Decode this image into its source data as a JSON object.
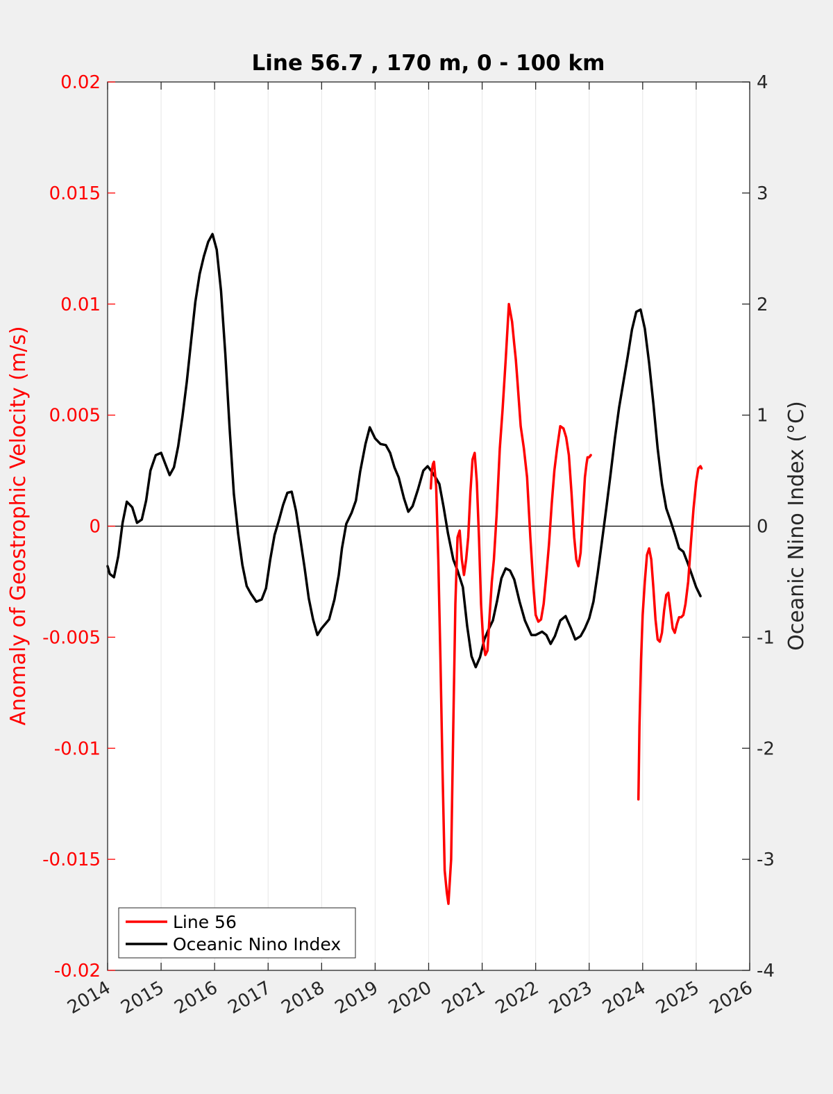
{
  "chart_data": {
    "type": "line",
    "title": "Line 56.7 , 170 m, 0 - 100 km",
    "xlabel": "",
    "ylabel_left": "Anomaly of Geostrophic Velocity (m/s)",
    "ylabel_right": "Oceanic Nino Index (°C)",
    "xlim": [
      2014,
      2026
    ],
    "ylim_left": [
      -0.02,
      0.02
    ],
    "ylim_right": [
      -4,
      4
    ],
    "x_ticks": [
      "2014",
      "2015",
      "2016",
      "2017",
      "2018",
      "2019",
      "2020",
      "2021",
      "2022",
      "2023",
      "2024",
      "2025",
      "2026"
    ],
    "y_left_ticks": [
      "-0.02",
      "-0.015",
      "-0.01",
      "-0.005",
      "0",
      "0.005",
      "0.01",
      "0.015",
      "0.02"
    ],
    "y_right_ticks": [
      "-4",
      "-3",
      "-2",
      "-1",
      "0",
      "1",
      "2",
      "3",
      "4"
    ],
    "grid": "vertical",
    "zero_line": true,
    "legend_position": "bottom-left",
    "colors": {
      "line56": "#ff0000",
      "oni": "#000000",
      "left_axis": "#ff0000",
      "right_axis": "#262626"
    },
    "series": [
      {
        "name": "Line 56",
        "axis": "left",
        "segments": [
          {
            "x": [
              2020.04,
              2020.06,
              2020.08,
              2020.1,
              2020.14,
              2020.18,
              2020.22,
              2020.26,
              2020.3,
              2020.34,
              2020.37,
              2020.42,
              2020.46,
              2020.5,
              2020.54,
              2020.58,
              2020.62,
              2020.66,
              2020.7,
              2020.74,
              2020.78,
              2020.82,
              2020.86,
              2020.9,
              2020.94,
              2020.98,
              2021.02,
              2021.06,
              2021.1,
              2021.14,
              2021.18,
              2021.22,
              2021.27,
              2021.33,
              2021.38,
              2021.44,
              2021.5,
              2021.56,
              2021.6,
              2021.63,
              2021.66,
              2021.72,
              2021.78,
              2021.84,
              2021.9,
              2021.96,
              2022.0,
              2022.05,
              2022.1,
              2022.15,
              2022.2,
              2022.25,
              2022.3,
              2022.35,
              2022.4,
              2022.46,
              2022.52,
              2022.57,
              2022.62,
              2022.67,
              2022.72,
              2022.76,
              2022.8,
              2022.84,
              2022.88,
              2022.92,
              2022.95,
              2022.97,
              2023.0,
              2023.03
            ],
            "y": [
              0.0017,
              0.0025,
              0.0028,
              0.0029,
              0.0018,
              -0.0015,
              -0.006,
              -0.011,
              -0.0155,
              -0.0165,
              -0.017,
              -0.015,
              -0.009,
              -0.0035,
              -0.0005,
              -0.0002,
              -0.0015,
              -0.0022,
              -0.0015,
              -0.0005,
              0.0015,
              0.003,
              0.0033,
              0.002,
              -0.0005,
              -0.0035,
              -0.0052,
              -0.0058,
              -0.0056,
              -0.004,
              -0.0025,
              -0.0015,
              0.0005,
              0.0035,
              0.0052,
              0.0075,
              0.01,
              0.0092,
              0.0082,
              0.0075,
              0.0065,
              0.0045,
              0.0035,
              0.0022,
              -0.0005,
              -0.0028,
              -0.004,
              -0.0043,
              -0.0042,
              -0.0035,
              -0.0022,
              -0.0008,
              0.001,
              0.0025,
              0.0035,
              0.0045,
              0.0044,
              0.004,
              0.0032,
              0.0015,
              -0.0005,
              -0.0015,
              -0.0018,
              -0.0012,
              0.0005,
              0.0022,
              0.0028,
              0.0031,
              0.0031,
              0.0032
            ]
          },
          {
            "x": [
              2023.92,
              2023.94,
              2023.97,
              2024.0,
              2024.04,
              2024.08,
              2024.12,
              2024.16,
              2024.2,
              2024.24,
              2024.28,
              2024.32,
              2024.36,
              2024.4,
              2024.44,
              2024.48,
              2024.52,
              2024.56,
              2024.6,
              2024.64,
              2024.68,
              2024.72,
              2024.76,
              2024.8,
              2024.85,
              2024.9,
              2024.95,
              2025.0,
              2025.04,
              2025.08,
              2025.1
            ],
            "y": [
              -0.0123,
              -0.009,
              -0.006,
              -0.004,
              -0.0025,
              -0.0013,
              -0.001,
              -0.0015,
              -0.0028,
              -0.0042,
              -0.0051,
              -0.0052,
              -0.0048,
              -0.0038,
              -0.0031,
              -0.003,
              -0.0038,
              -0.0046,
              -0.0048,
              -0.0044,
              -0.0041,
              -0.0041,
              -0.004,
              -0.0035,
              -0.0025,
              -0.0008,
              0.0008,
              0.002,
              0.0026,
              0.0027,
              0.0026
            ]
          }
        ]
      },
      {
        "name": "Oceanic Nino Index",
        "axis": "right",
        "segments": [
          {
            "x": [
              2014.0,
              2014.04,
              2014.12,
              2014.2,
              2014.28,
              2014.36,
              2014.46,
              2014.55,
              2014.64,
              2014.72,
              2014.8,
              2014.9,
              2015.0,
              2015.08,
              2015.16,
              2015.24,
              2015.32,
              2015.4,
              2015.48,
              2015.56,
              2015.64,
              2015.72,
              2015.8,
              2015.88,
              2015.96,
              2016.04,
              2016.12,
              2016.2,
              2016.28,
              2016.36,
              2016.44,
              2016.52,
              2016.6,
              2016.68,
              2016.78,
              2016.88,
              2016.96,
              2017.04,
              2017.12,
              2017.2,
              2017.28,
              2017.36,
              2017.44,
              2017.52,
              2017.6,
              2017.68,
              2017.76,
              2017.84,
              2017.92,
              2018.0,
              2018.14,
              2018.24,
              2018.32,
              2018.38,
              2018.46,
              2018.56,
              2018.64,
              2018.72,
              2018.82,
              2018.9,
              2019.0,
              2019.1,
              2019.2,
              2019.28,
              2019.36,
              2019.44,
              2019.54,
              2019.62,
              2019.7,
              2019.8,
              2019.9,
              2019.98,
              2020.06,
              2020.14,
              2020.2,
              2020.28,
              2020.36,
              2020.46,
              2020.54,
              2020.64,
              2020.72,
              2020.8,
              2020.88,
              2020.96,
              2021.04,
              2021.12,
              2021.2,
              2021.28,
              2021.36,
              2021.44,
              2021.52,
              2021.6,
              2021.7,
              2021.8,
              2021.92,
              2022.0,
              2022.12,
              2022.2,
              2022.28,
              2022.36,
              2022.46,
              2022.56,
              2022.66,
              2022.74,
              2022.84,
              2022.92,
              2023.0,
              2023.08,
              2023.16,
              2023.24,
              2023.32,
              2023.4,
              2023.48,
              2023.56,
              2023.64,
              2023.72,
              2023.8,
              2023.88,
              2023.96,
              2024.04,
              2024.12,
              2024.2,
              2024.28,
              2024.36,
              2024.44,
              2024.52,
              2024.6,
              2024.68,
              2024.76,
              2024.84,
              2024.92,
              2025.0,
              2025.08
            ],
            "y": [
              -0.36,
              -0.43,
              -0.46,
              -0.27,
              0.03,
              0.22,
              0.17,
              0.03,
              0.06,
              0.23,
              0.5,
              0.64,
              0.66,
              0.56,
              0.46,
              0.53,
              0.72,
              0.99,
              1.3,
              1.66,
              2.02,
              2.27,
              2.43,
              2.56,
              2.63,
              2.49,
              2.12,
              1.55,
              0.89,
              0.29,
              -0.07,
              -0.35,
              -0.54,
              -0.61,
              -0.68,
              -0.66,
              -0.56,
              -0.3,
              -0.08,
              0.05,
              0.19,
              0.3,
              0.31,
              0.14,
              -0.11,
              -0.37,
              -0.65,
              -0.84,
              -0.98,
              -0.92,
              -0.84,
              -0.66,
              -0.44,
              -0.2,
              0.02,
              0.12,
              0.23,
              0.49,
              0.74,
              0.89,
              0.79,
              0.74,
              0.73,
              0.66,
              0.53,
              0.44,
              0.25,
              0.13,
              0.18,
              0.33,
              0.5,
              0.54,
              0.49,
              0.43,
              0.38,
              0.17,
              -0.06,
              -0.3,
              -0.4,
              -0.55,
              -0.9,
              -1.17,
              -1.27,
              -1.18,
              -1.02,
              -0.93,
              -0.85,
              -0.67,
              -0.47,
              -0.38,
              -0.4,
              -0.48,
              -0.68,
              -0.85,
              -0.98,
              -0.98,
              -0.95,
              -0.98,
              -1.06,
              -0.99,
              -0.85,
              -0.81,
              -0.92,
              -1.02,
              -0.99,
              -0.92,
              -0.83,
              -0.68,
              -0.42,
              -0.13,
              0.16,
              0.47,
              0.79,
              1.07,
              1.3,
              1.53,
              1.77,
              1.93,
              1.95,
              1.78,
              1.47,
              1.1,
              0.7,
              0.38,
              0.16,
              0.05,
              -0.07,
              -0.2,
              -0.23,
              -0.33,
              -0.44,
              -0.55,
              -0.63
            ]
          }
        ]
      }
    ]
  }
}
